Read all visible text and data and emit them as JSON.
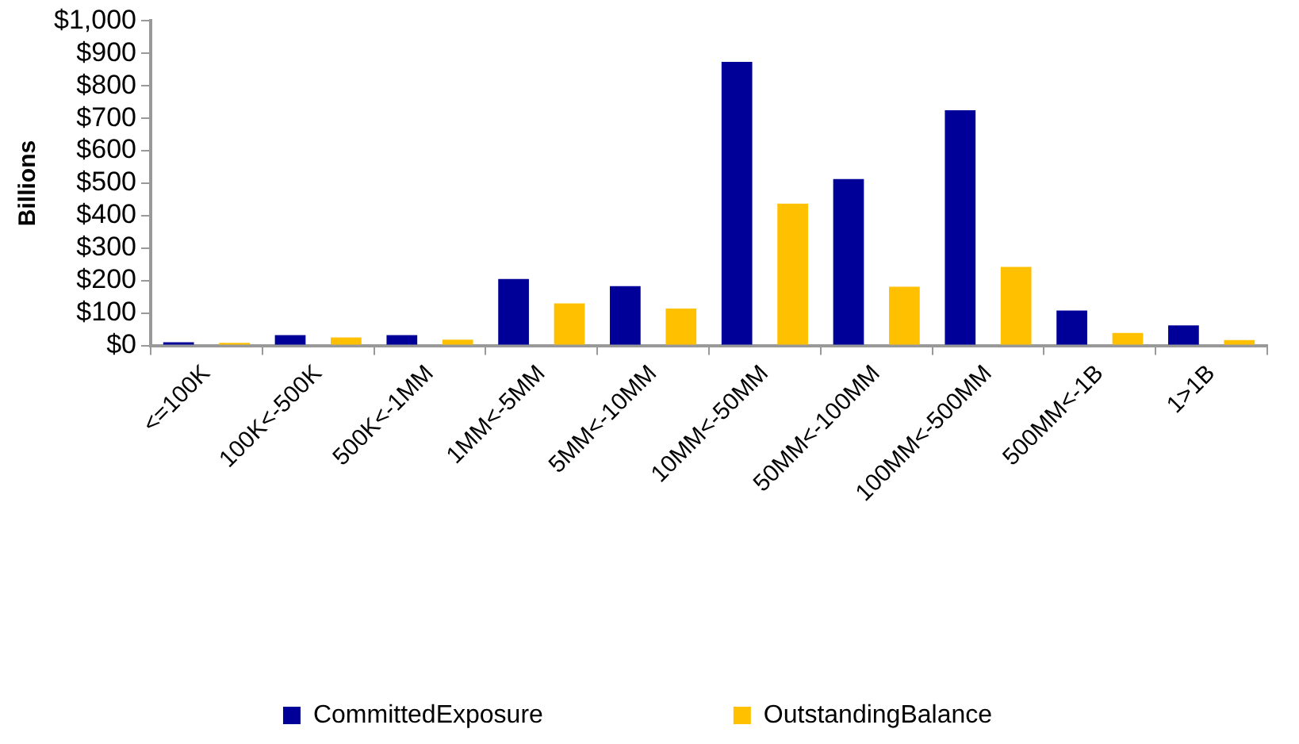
{
  "chart_data": {
    "type": "bar",
    "ylabel": "Billions",
    "categories": [
      "<=100K",
      "100K<-500K",
      "500K<-1MM",
      "1MM<-5MM",
      "5MM<-10MM",
      "10MM<-50MM",
      "50MM<-100MM",
      "100MM<-500MM",
      "500MM<-1B",
      "1>1B"
    ],
    "series": [
      {
        "name": "CommittedExposure",
        "color": "#000099",
        "values": [
          10,
          32,
          32,
          205,
          183,
          874,
          513,
          725,
          108,
          62
        ]
      },
      {
        "name": "OutstandingBalance",
        "color": "#ffc000",
        "values": [
          8,
          25,
          18,
          130,
          114,
          437,
          181,
          242,
          39,
          17
        ]
      }
    ],
    "ylim": [
      0,
      1000
    ],
    "yticks": [
      {
        "value": 0,
        "label": "$0"
      },
      {
        "value": 100,
        "label": "$100"
      },
      {
        "value": 200,
        "label": "$200"
      },
      {
        "value": 300,
        "label": "$300"
      },
      {
        "value": 400,
        "label": "$400"
      },
      {
        "value": 500,
        "label": "$500"
      },
      {
        "value": 600,
        "label": "$600"
      },
      {
        "value": 700,
        "label": "$700"
      },
      {
        "value": 800,
        "label": "$800"
      },
      {
        "value": 900,
        "label": "$900"
      },
      {
        "value": 1000,
        "label": "$1,000"
      }
    ],
    "grid": false,
    "legend": "bottom"
  }
}
